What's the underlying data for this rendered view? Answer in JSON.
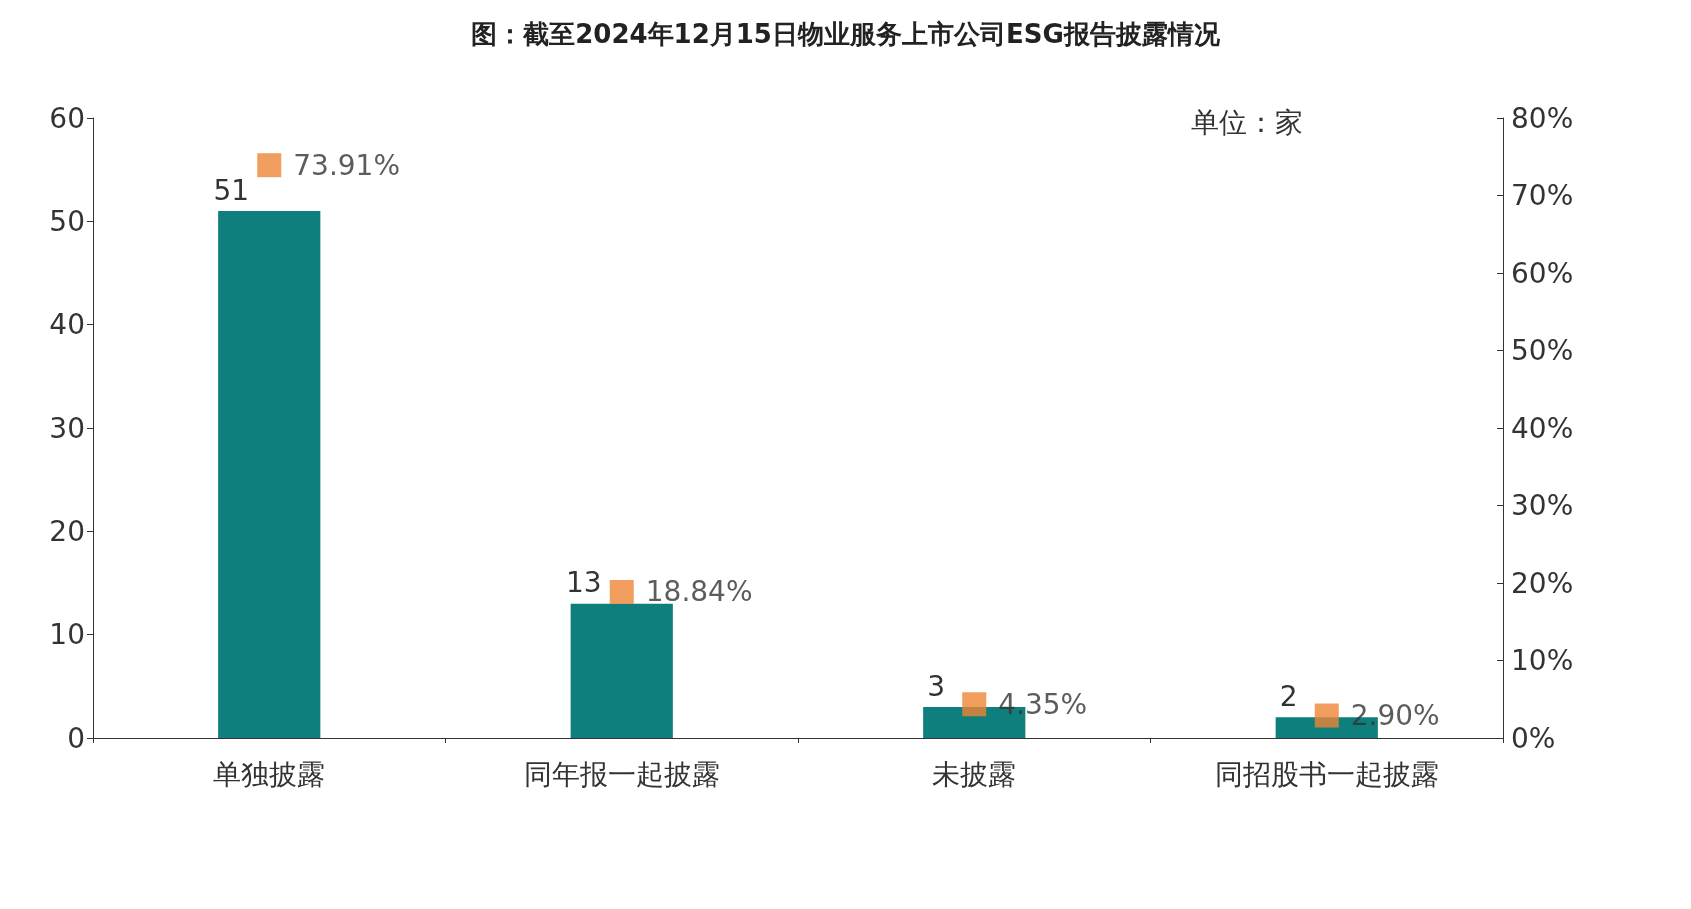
{
  "chart_data": {
    "type": "bar",
    "title": "图：截至2024年12月15日物业服务上市公司ESG报告披露情况",
    "categories": [
      "单独披露",
      "同年报一起披露",
      "未披露",
      "同招股书一起披露"
    ],
    "series": [
      {
        "color": "#0e7f7c",
        "values": [
          51,
          13,
          3,
          2
        ],
        "data_labels": true
      },
      {
        "type": "scatter",
        "axis": "y2",
        "color": "#ee8534",
        "values": [
          73.91,
          18.84,
          4.35,
          2.9
        ],
        "value_labels": [
          "73.91%",
          "18.84%",
          "4.35%",
          "2.90%"
        ],
        "marker": "square"
      }
    ],
    "ylim": [
      0,
      60
    ],
    "yticks": [
      0,
      10,
      20,
      30,
      40,
      50,
      60
    ],
    "y2lim": [
      0,
      80
    ],
    "y2ticks": [
      {
        "value": 0,
        "label": "0%"
      },
      {
        "value": 10,
        "label": "10%"
      },
      {
        "value": 20,
        "label": "20%"
      },
      {
        "value": 30,
        "label": "30%"
      },
      {
        "value": 40,
        "label": "40%"
      },
      {
        "value": 50,
        "label": "50%"
      },
      {
        "value": 60,
        "label": "60%"
      },
      {
        "value": 70,
        "label": "70%"
      },
      {
        "value": 80,
        "label": "80%"
      }
    ],
    "annotations": [
      "单位：家"
    ],
    "grid": false
  }
}
